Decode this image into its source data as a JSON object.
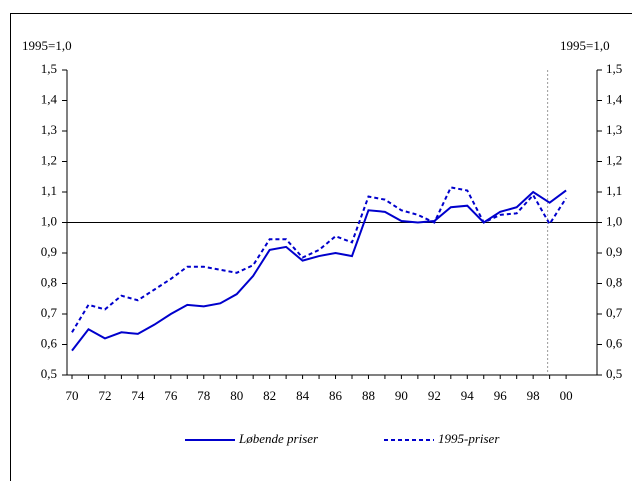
{
  "chart_data": {
    "type": "line",
    "y_axis_label": "1995=1,0",
    "y2_axis_label": "1995=1,0",
    "categories": [
      "70",
      null,
      "72",
      null,
      "74",
      null,
      "76",
      null,
      "78",
      null,
      "80",
      null,
      "82",
      null,
      "84",
      null,
      "86",
      null,
      "88",
      null,
      "90",
      null,
      "92",
      null,
      "94",
      null,
      "96",
      null,
      "98",
      null,
      "00"
    ],
    "series": [
      {
        "name": "Løbende priser",
        "color": "#0000cc",
        "dash": false,
        "values": [
          0.58,
          0.65,
          0.62,
          0.64,
          0.635,
          0.665,
          0.7,
          0.73,
          0.725,
          0.735,
          0.765,
          0.825,
          0.91,
          0.92,
          0.875,
          0.89,
          0.9,
          0.89,
          1.04,
          1.035,
          1.005,
          1.0,
          1.005,
          1.05,
          1.055,
          1.0,
          1.035,
          1.05,
          1.1,
          1.065,
          1.105
        ]
      },
      {
        "name": "1995-priser",
        "color": "#0000cc",
        "dash": true,
        "values": [
          0.64,
          0.73,
          0.715,
          0.76,
          0.745,
          0.78,
          0.815,
          0.855,
          0.855,
          0.845,
          0.835,
          0.86,
          0.945,
          0.945,
          0.885,
          0.91,
          0.955,
          0.935,
          1.085,
          1.075,
          1.04,
          1.025,
          1.0,
          1.115,
          1.105,
          1.0,
          1.025,
          1.03,
          1.09,
          0.995,
          1.08
        ]
      }
    ],
    "ylim": [
      0.5,
      1.5
    ],
    "yticks": [
      {
        "value": 0.5,
        "label": "0,5"
      },
      {
        "value": 0.6,
        "label": "0,6"
      },
      {
        "value": 0.7,
        "label": "0,7"
      },
      {
        "value": 0.8,
        "label": "0,8"
      },
      {
        "value": 0.9,
        "label": "0,9"
      },
      {
        "value": 1.0,
        "label": "1,0"
      },
      {
        "value": 1.1,
        "label": "1,1"
      },
      {
        "value": 1.2,
        "label": "1,2"
      },
      {
        "value": 1.3,
        "label": "1,3"
      },
      {
        "value": 1.4,
        "label": "1,4"
      },
      {
        "value": 1.5,
        "label": "1,5"
      }
    ],
    "y2lim": [
      0.5,
      1.5
    ],
    "y2ticks": [
      {
        "value": 0.5,
        "label": "0,5"
      },
      {
        "value": 0.6,
        "label": "0,6"
      },
      {
        "value": 0.7,
        "label": "0,7"
      },
      {
        "value": 0.8,
        "label": "0,8"
      },
      {
        "value": 0.9,
        "label": "0,9"
      },
      {
        "value": 1.0,
        "label": "1,0"
      },
      {
        "value": 1.1,
        "label": "1,1"
      },
      {
        "value": 1.2,
        "label": "1,2"
      },
      {
        "value": 1.3,
        "label": "1,3"
      },
      {
        "value": 1.4,
        "label": "1,4"
      },
      {
        "value": 1.5,
        "label": "1,5"
      }
    ],
    "reference_line": 1.0,
    "legend": "bottom"
  }
}
